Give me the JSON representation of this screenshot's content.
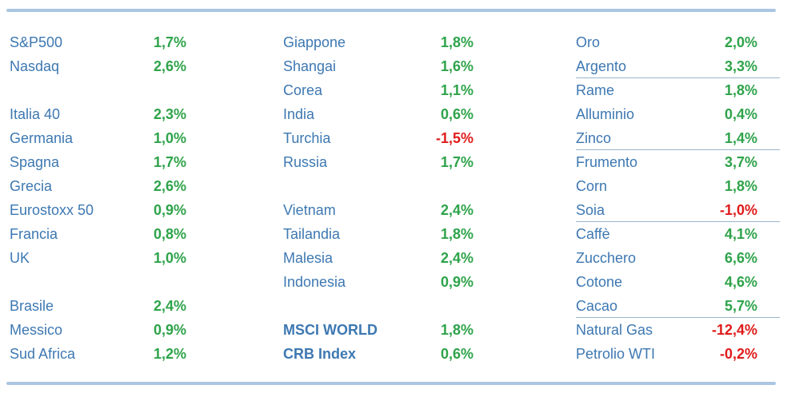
{
  "colors": {
    "label": "#3d78b2",
    "positive": "#2ea34a",
    "negative": "#e01b1b",
    "rule": "#a9c6e2"
  },
  "columns": [
    {
      "rows": [
        {
          "name": "S&P500",
          "value": "1,7%",
          "neg": false
        },
        {
          "name": "Nasdaq",
          "value": "2,6%",
          "neg": false
        },
        null,
        {
          "name": "Italia 40",
          "value": "2,3%",
          "neg": false
        },
        {
          "name": "Germania",
          "value": "1,0%",
          "neg": false
        },
        {
          "name": "Spagna",
          "value": "1,7%",
          "neg": false
        },
        {
          "name": "Grecia",
          "value": "2,6%",
          "neg": false
        },
        {
          "name": "Eurostoxx 50",
          "value": "0,9%",
          "neg": false
        },
        {
          "name": "Francia",
          "value": "0,8%",
          "neg": false
        },
        {
          "name": "UK",
          "value": "1,0%",
          "neg": false
        },
        null,
        {
          "name": "Brasile",
          "value": "2,4%",
          "neg": false
        },
        {
          "name": "Messico",
          "value": "0,9%",
          "neg": false
        },
        {
          "name": "Sud Africa",
          "value": "1,2%",
          "neg": false
        }
      ]
    },
    {
      "rows": [
        {
          "name": "Giappone",
          "value": "1,8%",
          "neg": false
        },
        {
          "name": "Shangai",
          "value": "1,6%",
          "neg": false
        },
        {
          "name": "Corea",
          "value": "1,1%",
          "neg": false
        },
        {
          "name": "India",
          "value": "0,6%",
          "neg": false
        },
        {
          "name": "Turchia",
          "value": "-1,5%",
          "neg": true
        },
        {
          "name": "Russia",
          "value": "1,7%",
          "neg": false
        },
        null,
        {
          "name": "Vietnam",
          "value": "2,4%",
          "neg": false
        },
        {
          "name": "Tailandia",
          "value": "1,8%",
          "neg": false
        },
        {
          "name": "Malesia",
          "value": "2,4%",
          "neg": false
        },
        {
          "name": "Indonesia",
          "value": "0,9%",
          "neg": false
        },
        null,
        {
          "name": "MSCI WORLD",
          "value": "1,8%",
          "neg": false,
          "bold": true
        },
        {
          "name": "CRB Index",
          "value": "0,6%",
          "neg": false,
          "bold": true
        }
      ]
    },
    {
      "rows": [
        {
          "name": "Oro",
          "value": "2,0%",
          "neg": false
        },
        {
          "name": "Argento",
          "value": "3,3%",
          "neg": false,
          "sep": true
        },
        {
          "name": "Rame",
          "value": "1,8%",
          "neg": false
        },
        {
          "name": "Alluminio",
          "value": "0,4%",
          "neg": false
        },
        {
          "name": "Zinco",
          "value": "1,4%",
          "neg": false,
          "sep": true
        },
        {
          "name": "Frumento",
          "value": "3,7%",
          "neg": false
        },
        {
          "name": "Corn",
          "value": "1,8%",
          "neg": false
        },
        {
          "name": "Soia",
          "value": "-1,0%",
          "neg": true,
          "sep": true
        },
        {
          "name": "Caffè",
          "value": "4,1%",
          "neg": false
        },
        {
          "name": "Zucchero",
          "value": "6,6%",
          "neg": false
        },
        {
          "name": "Cotone",
          "value": "4,6%",
          "neg": false
        },
        {
          "name": "Cacao",
          "value": "5,7%",
          "neg": false,
          "sep": true
        },
        {
          "name": "Natural Gas",
          "value": "-12,4%",
          "neg": true
        },
        {
          "name": "Petrolio WTI",
          "value": "-0,2%",
          "neg": true
        }
      ]
    }
  ]
}
